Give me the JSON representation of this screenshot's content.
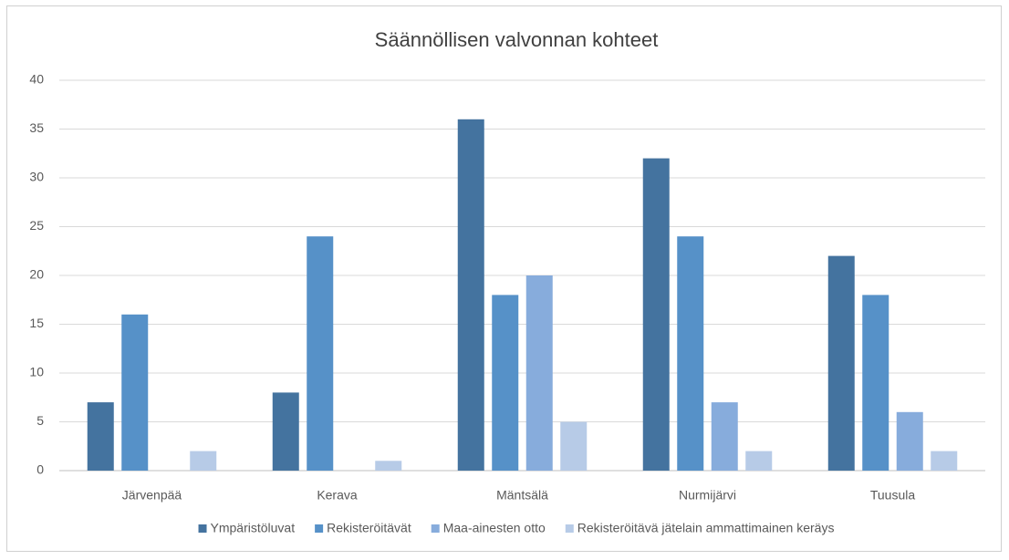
{
  "chart_data": {
    "type": "bar",
    "title": "Säännöllisen valvonnan kohteet",
    "categories": [
      "Järvenpää",
      "Kerava",
      "Mäntsälä",
      "Nurmijärvi",
      "Tuusula"
    ],
    "series": [
      {
        "name": "Ympäristöluvat",
        "color": "#44739f",
        "values": [
          7,
          8,
          36,
          32,
          22
        ]
      },
      {
        "name": "Rekisteröitävät",
        "color": "#5691c8",
        "values": [
          16,
          24,
          18,
          24,
          18
        ]
      },
      {
        "name": "Maa-ainesten otto",
        "color": "#87acdc",
        "values": [
          0,
          0,
          20,
          7,
          6
        ]
      },
      {
        "name": "Rekisteröitävä jätelain ammattimainen keräys",
        "color": "#b7cbe7",
        "values": [
          2,
          1,
          5,
          2,
          2
        ]
      }
    ],
    "ylim": [
      0,
      40
    ],
    "yticks": [
      0,
      5,
      10,
      15,
      20,
      25,
      30,
      35,
      40
    ],
    "grid": true,
    "legend": "bottom"
  }
}
